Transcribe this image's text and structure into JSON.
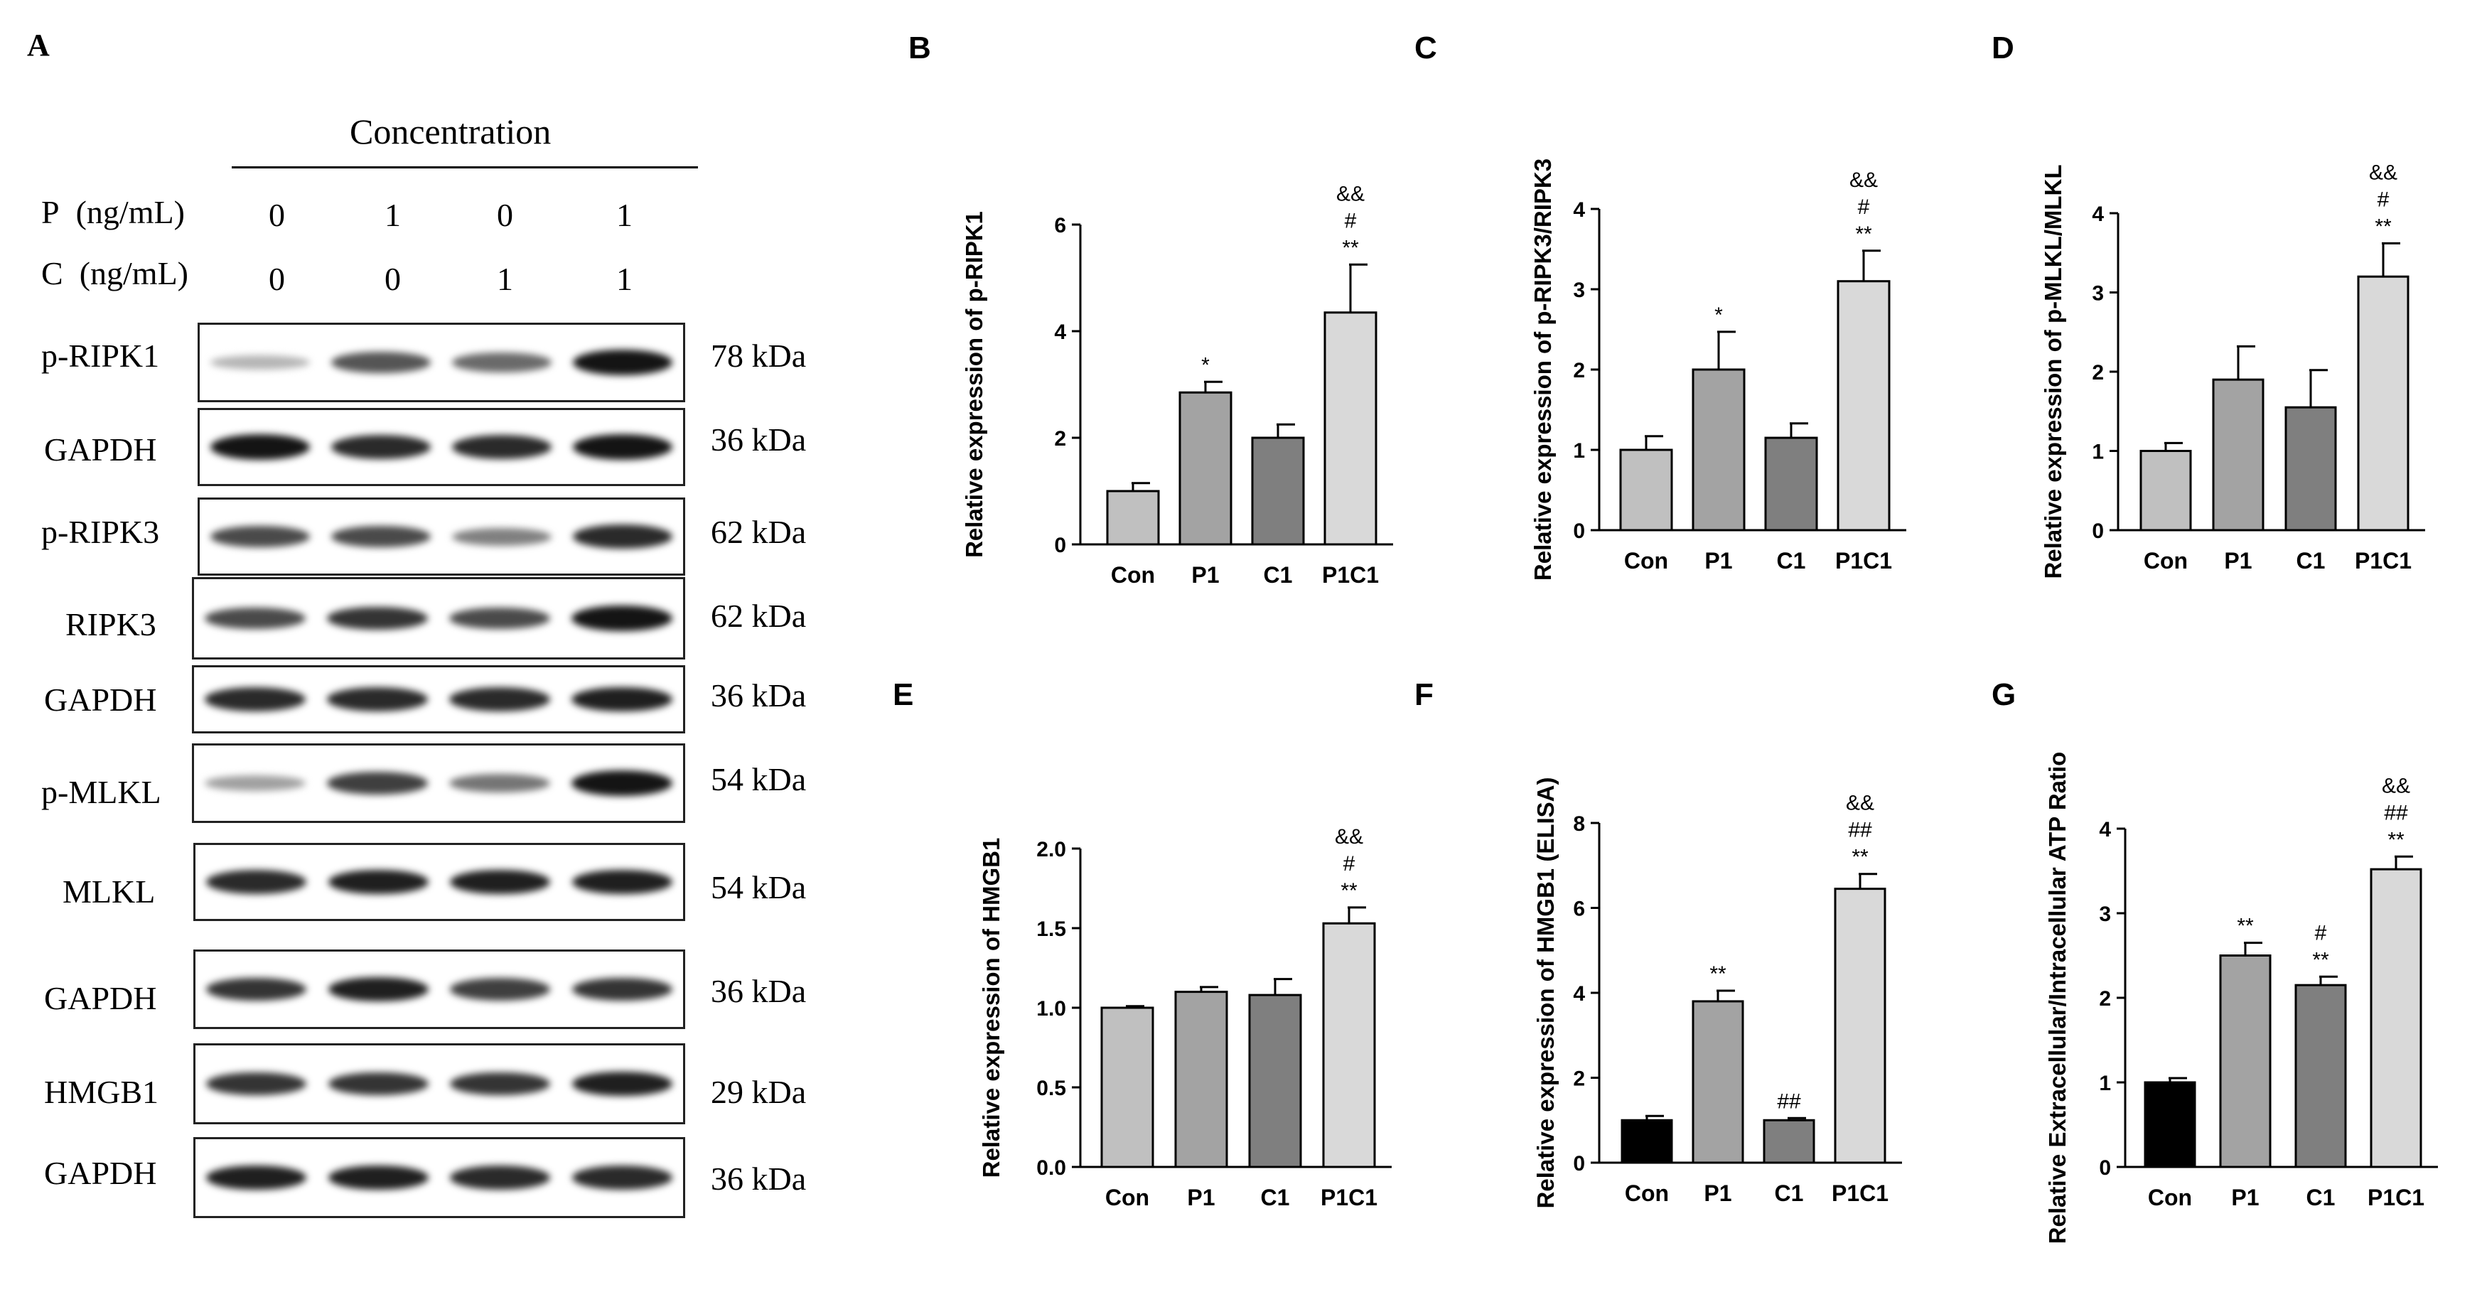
{
  "panel_a": {
    "letter": "A",
    "concentration_title": "Concentration",
    "p_label": "P",
    "c_label": "C",
    "unit": "(ng/mL)",
    "p_values": [
      "0",
      "1",
      "0",
      "1"
    ],
    "c_values": [
      "0",
      "0",
      "1",
      "1"
    ],
    "blots": [
      {
        "label": "p-RIPK1",
        "kda": "78 kDa",
        "intensities": [
          0.25,
          0.7,
          0.6,
          1.0
        ]
      },
      {
        "label": "GAPDH",
        "kda": "36 kDa",
        "intensities": [
          1.0,
          0.9,
          0.9,
          1.0
        ]
      },
      {
        "label": "p-RIPK3",
        "kda": "62 kDa",
        "intensities": [
          0.75,
          0.75,
          0.5,
          0.9
        ]
      },
      {
        "label": "RIPK3",
        "kda": "62 kDa",
        "intensities": [
          0.75,
          0.85,
          0.75,
          1.0
        ]
      },
      {
        "label": "GAPDH",
        "kda": "36 kDa",
        "intensities": [
          0.9,
          0.9,
          0.9,
          0.95
        ]
      },
      {
        "label": "p-MLKL",
        "kda": "54 kDa",
        "intensities": [
          0.35,
          0.8,
          0.55,
          1.0
        ]
      },
      {
        "label": "MLKL",
        "kda": "54 kDa",
        "intensities": [
          0.9,
          0.95,
          0.95,
          0.95
        ]
      },
      {
        "label": "GAPDH",
        "kda": "36 kDa",
        "intensities": [
          0.85,
          0.95,
          0.8,
          0.85
        ]
      },
      {
        "label": "HMGB1",
        "kda": "29 kDa",
        "intensities": [
          0.85,
          0.85,
          0.85,
          0.95
        ]
      },
      {
        "label": "GAPDH",
        "kda": "36 kDa",
        "intensities": [
          0.95,
          0.95,
          0.9,
          0.9
        ]
      }
    ]
  },
  "chart_data": [
    {
      "panel": "B",
      "type": "bar",
      "title": "",
      "xlabel": "",
      "ylabel": "Relative expression of  p-RIPK1",
      "categories": [
        "Con",
        "P1",
        "C1",
        "P1C1"
      ],
      "values": [
        1.0,
        2.85,
        2.0,
        4.35
      ],
      "errors": [
        0.15,
        0.2,
        0.25,
        0.9
      ],
      "ylim": [
        0,
        6
      ],
      "ticks": [
        "0",
        "2",
        "4",
        "6"
      ],
      "tick_values": [
        0,
        2,
        4,
        6
      ],
      "annotations": [
        [],
        [
          "*"
        ],
        [],
        [
          "&&",
          "#",
          "**"
        ]
      ],
      "colors": [
        "#c0c0c0",
        "#a3a3a3",
        "#7f7f7f",
        "#d9d9d9"
      ]
    },
    {
      "panel": "C",
      "type": "bar",
      "title": "",
      "xlabel": "",
      "ylabel": "Relative expression of  p-RIPK3/RIPK3",
      "categories": [
        "Con",
        "P1",
        "C1",
        "P1C1"
      ],
      "values": [
        1.0,
        2.0,
        1.15,
        3.1
      ],
      "errors": [
        0.17,
        0.47,
        0.18,
        0.38
      ],
      "ylim": [
        0,
        4
      ],
      "ticks": [
        "0",
        "1",
        "2",
        "3",
        "4"
      ],
      "tick_values": [
        0,
        1,
        2,
        3,
        4
      ],
      "annotations": [
        [],
        [
          "*"
        ],
        [],
        [
          "&&",
          "#",
          "**"
        ]
      ],
      "colors": [
        "#c0c0c0",
        "#a3a3a3",
        "#7f7f7f",
        "#d9d9d9"
      ]
    },
    {
      "panel": "D",
      "type": "bar",
      "title": "",
      "xlabel": "",
      "ylabel": "Relative expression of p-MLKL/MLKL",
      "categories": [
        "Con",
        "P1",
        "C1",
        "P1C1"
      ],
      "values": [
        1.0,
        1.9,
        1.55,
        3.2
      ],
      "errors": [
        0.1,
        0.42,
        0.47,
        0.42
      ],
      "ylim": [
        0,
        4
      ],
      "ticks": [
        "0",
        "1",
        "2",
        "3",
        "4"
      ],
      "tick_values": [
        0,
        1,
        2,
        3,
        4
      ],
      "annotations": [
        [],
        [],
        [],
        [
          "&&",
          "#",
          "**"
        ]
      ],
      "colors": [
        "#c0c0c0",
        "#a3a3a3",
        "#7f7f7f",
        "#d9d9d9"
      ]
    },
    {
      "panel": "E",
      "type": "bar",
      "title": "",
      "xlabel": "",
      "ylabel": "Relative expression of HMGB1",
      "categories": [
        "Con",
        "P1",
        "C1",
        "P1C1"
      ],
      "values": [
        1.0,
        1.1,
        1.08,
        1.53
      ],
      "errors": [
        0.01,
        0.03,
        0.1,
        0.1
      ],
      "ylim": [
        0,
        2.0
      ],
      "ticks": [
        "0.0",
        "0.5",
        "1.0",
        "1.5",
        "2.0"
      ],
      "tick_values": [
        0,
        0.5,
        1.0,
        1.5,
        2.0
      ],
      "annotations": [
        [],
        [],
        [],
        [
          "&&",
          "#",
          "**"
        ]
      ],
      "colors": [
        "#c0c0c0",
        "#a3a3a3",
        "#7f7f7f",
        "#d9d9d9"
      ]
    },
    {
      "panel": "F",
      "type": "bar",
      "title": "",
      "xlabel": "",
      "ylabel": "Relative expression of HMGB1 (ELISA)",
      "categories": [
        "Con",
        "P1",
        "C1",
        "P1C1"
      ],
      "values": [
        1.0,
        3.8,
        1.0,
        6.45
      ],
      "errors": [
        0.1,
        0.25,
        0.05,
        0.35
      ],
      "ylim": [
        0,
        8
      ],
      "ticks": [
        "0",
        "2",
        "4",
        "6",
        "8"
      ],
      "tick_values": [
        0,
        2,
        4,
        6,
        8
      ],
      "annotations": [
        [],
        [
          "**"
        ],
        [
          "##"
        ],
        [
          "&&",
          "##",
          "**"
        ]
      ],
      "colors": [
        "#000000",
        "#a3a3a3",
        "#7f7f7f",
        "#d9d9d9"
      ]
    },
    {
      "panel": "G",
      "type": "bar",
      "title": "",
      "xlabel": "",
      "ylabel": "Relative Extracellular/Intracellular ATP Ratio",
      "categories": [
        "Con",
        "P1",
        "C1",
        "P1C1"
      ],
      "values": [
        1.0,
        2.5,
        2.15,
        3.52
      ],
      "errors": [
        0.05,
        0.15,
        0.1,
        0.15
      ],
      "ylim": [
        0,
        4
      ],
      "ticks": [
        "0",
        "1",
        "2",
        "3",
        "4"
      ],
      "tick_values": [
        0,
        1,
        2,
        3,
        4
      ],
      "annotations": [
        [],
        [
          "**"
        ],
        [
          "#",
          "**"
        ],
        [
          "&&",
          "##",
          "**"
        ]
      ],
      "colors": [
        "#000000",
        "#a3a3a3",
        "#7f7f7f",
        "#d9d9d9"
      ]
    }
  ]
}
